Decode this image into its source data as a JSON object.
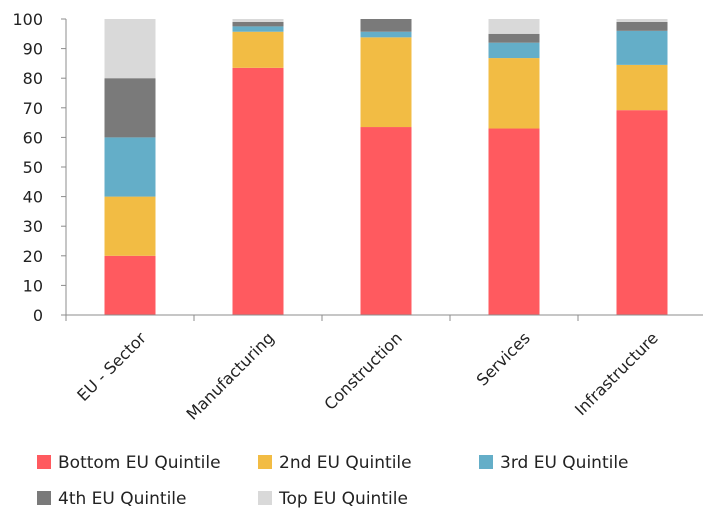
{
  "chart_data": {
    "type": "bar",
    "stacked": true,
    "categories": [
      "EU - Sector",
      "Manufacturing",
      "Construction",
      "Services",
      "Infrastructure"
    ],
    "ylim": [
      0,
      100
    ],
    "yticks": [
      0,
      10,
      20,
      30,
      40,
      50,
      60,
      70,
      80,
      90,
      100
    ],
    "grid": false,
    "legend_position": "bottom",
    "series": [
      {
        "name": "Bottom EU Quintile",
        "color": "#ff5a5f",
        "values": [
          20,
          83.5,
          63.5,
          63,
          69.2
        ]
      },
      {
        "name": "2nd EU Quintile",
        "color": "#f2bc44",
        "values": [
          20,
          12.2,
          30.3,
          23.8,
          15.3
        ]
      },
      {
        "name": "3rd EU Quintile",
        "color": "#64aec8",
        "values": [
          20,
          1.8,
          1.9,
          5.2,
          11.5
        ]
      },
      {
        "name": "4th EU Quintile",
        "color": "#7a7a7a",
        "values": [
          20,
          1.5,
          4.3,
          3.0,
          3.0
        ]
      },
      {
        "name": "Top EU Quintile",
        "color": "#d9d9d9",
        "values": [
          20,
          1.0,
          0.0,
          5.0,
          1.0
        ]
      }
    ]
  }
}
